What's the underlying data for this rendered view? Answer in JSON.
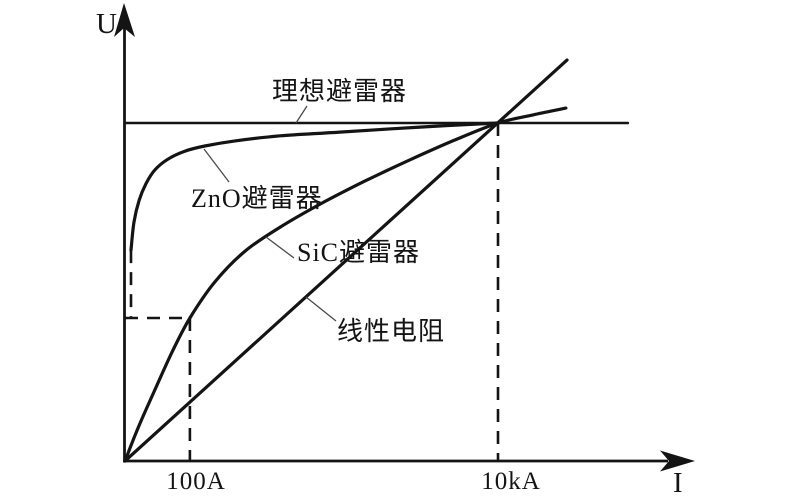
{
  "figure": {
    "background": "#ffffff",
    "ink_color": "#141414",
    "leader_line_color": "#4a4a4a"
  },
  "chart_data": {
    "type": "line",
    "title": "",
    "xlabel": "I",
    "ylabel": "U",
    "x_scale_note": "schematic current axis, unlabeled except two tick marks",
    "y_scale_note": "voltage relative to ideal-arrester protection level = 1.0",
    "grid": false,
    "legend": "inline leader-line annotations",
    "x_ticks": [
      {
        "label": "100A",
        "x_rel": 0.174
      },
      {
        "label": "10kA",
        "x_rel": 1.0
      }
    ],
    "crossing_point_note": "all four characteristics intersect at I = 10kA at the protection voltage level",
    "series": [
      {
        "id": "ideal-arrester",
        "name": "理想避雷器",
        "style": "solid",
        "width": 2.6,
        "points": [
          [
            0,
            1.0
          ],
          [
            1.348,
            1.0
          ]
        ]
      },
      {
        "id": "zno-arrester",
        "name": "ZnO避雷器",
        "style": "solid",
        "width": 3.2,
        "points": [
          [
            0.016,
            0.624
          ],
          [
            0.024,
            0.707
          ],
          [
            0.038,
            0.772
          ],
          [
            0.056,
            0.82
          ],
          [
            0.08,
            0.861
          ],
          [
            0.115,
            0.893
          ],
          [
            0.161,
            0.917
          ],
          [
            0.214,
            0.932
          ],
          [
            0.295,
            0.947
          ],
          [
            0.416,
            0.962
          ],
          [
            0.576,
            0.973
          ],
          [
            0.791,
            0.988
          ],
          [
            1.0,
            1.0
          ]
        ]
      },
      {
        "id": "sic-arrester",
        "name": "SiC避雷器",
        "style": "solid",
        "width": 3.2,
        "points": [
          [
            0,
            0
          ],
          [
            0.035,
            0.098
          ],
          [
            0.08,
            0.21
          ],
          [
            0.126,
            0.322
          ],
          [
            0.174,
            0.423
          ],
          [
            0.241,
            0.53
          ],
          [
            0.322,
            0.621
          ],
          [
            0.416,
            0.692
          ],
          [
            0.523,
            0.76
          ],
          [
            0.643,
            0.828
          ],
          [
            0.764,
            0.891
          ],
          [
            0.885,
            0.95
          ],
          [
            1.0,
            1.0
          ],
          [
            1.094,
            1.024
          ],
          [
            1.182,
            1.044
          ]
        ]
      },
      {
        "id": "linear-resistor",
        "name": "线性电阻",
        "style": "solid",
        "width": 3.2,
        "points": [
          [
            0,
            0
          ],
          [
            1.185,
            1.186
          ]
        ]
      }
    ],
    "dashed_guides": [
      {
        "id": "zno-zero-current-guide",
        "points": [
          [
            0.016,
            0.624
          ],
          [
            0.016,
            0.423
          ]
        ]
      },
      {
        "id": "residual-voltage-level-guide",
        "points": [
          [
            0,
            0.423
          ],
          [
            0.174,
            0.423
          ]
        ]
      },
      {
        "id": "tick-100a-guide",
        "points": [
          [
            0.174,
            0.423
          ],
          [
            0.174,
            0
          ]
        ]
      },
      {
        "id": "tick-10ka-guide",
        "points": [
          [
            1.0,
            1.0
          ],
          [
            1.0,
            0
          ]
        ]
      }
    ]
  }
}
